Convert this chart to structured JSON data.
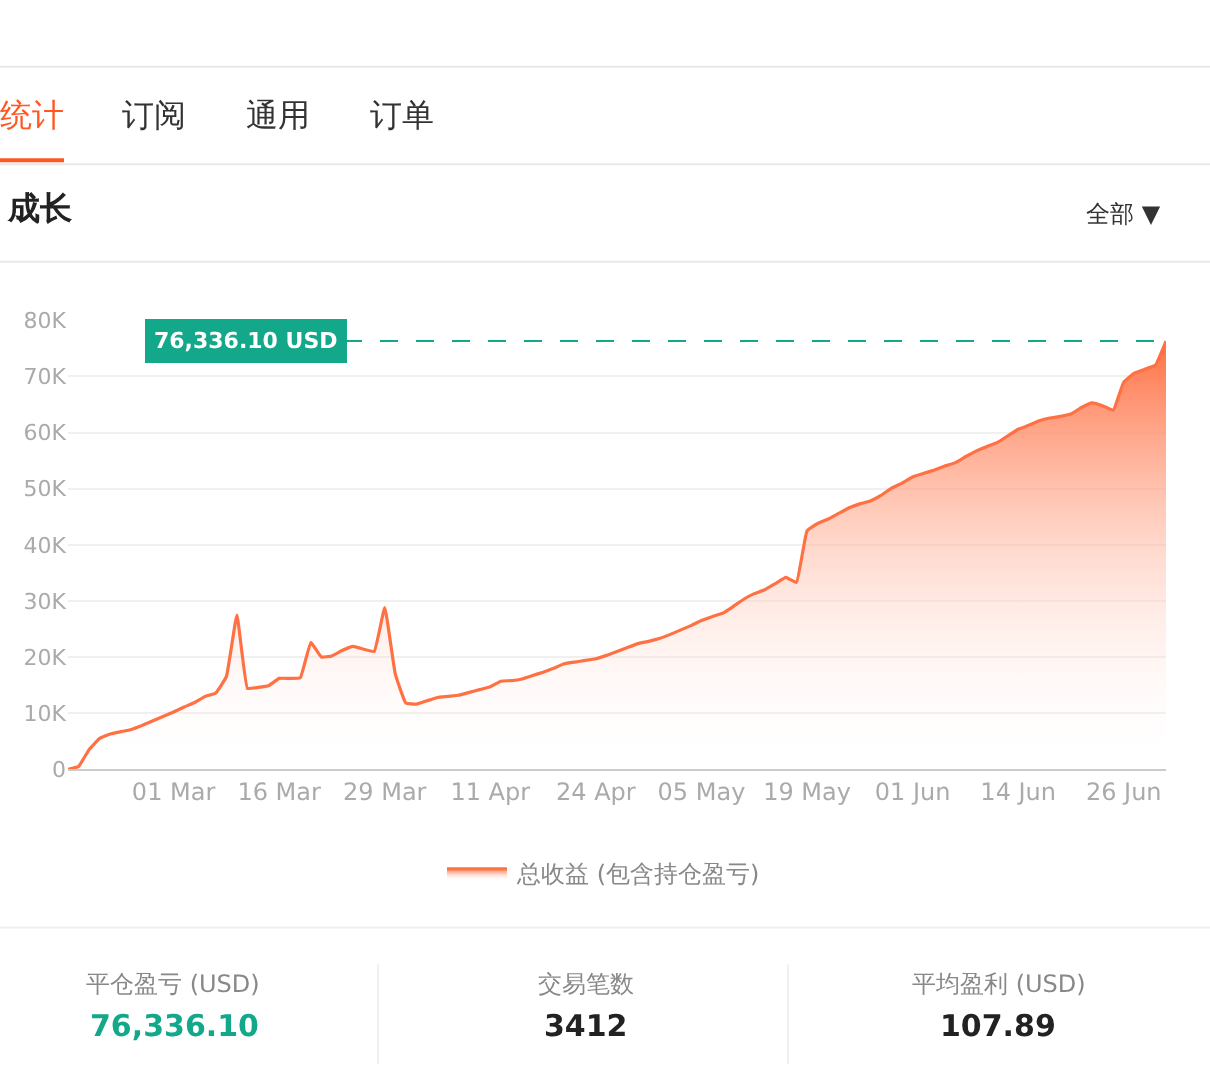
{
  "chart_data": {
    "type": "area",
    "title": "成长",
    "categories": [
      null,
      null,
      null,
      null,
      null,
      null,
      null,
      null,
      null,
      null,
      "01 Mar",
      null,
      null,
      null,
      null,
      null,
      null,
      null,
      null,
      null,
      "16 Mar",
      null,
      null,
      null,
      null,
      null,
      null,
      null,
      null,
      null,
      "29 Mar",
      null,
      null,
      null,
      null,
      null,
      null,
      null,
      null,
      null,
      "11 Apr",
      null,
      null,
      null,
      null,
      null,
      null,
      null,
      null,
      null,
      "24 Apr",
      null,
      null,
      null,
      null,
      null,
      null,
      null,
      null,
      null,
      "05 May",
      null,
      null,
      null,
      null,
      null,
      null,
      null,
      null,
      null,
      "19 May",
      null,
      null,
      null,
      null,
      null,
      null,
      null,
      null,
      null,
      "01 Jun",
      null,
      null,
      null,
      null,
      null,
      null,
      null,
      null,
      null,
      "14 Jun",
      null,
      null,
      null,
      null,
      null,
      null,
      null,
      null,
      null,
      "26 Jun",
      null,
      null,
      null,
      null
    ],
    "series": [
      {
        "name": "总收益 (包含持仓盈亏)",
        "color": "#ff7043",
        "values": [
          0,
          500,
          3500,
          5500,
          6300,
          6700,
          7100,
          7800,
          8600,
          9400,
          10200,
          11100,
          11900,
          13000,
          13600,
          16500,
          27500,
          14400,
          14600,
          14900,
          16200,
          16200,
          16300,
          22600,
          20000,
          20200,
          21200,
          21900,
          21400,
          21000,
          28800,
          17000,
          11800,
          11600,
          12200,
          12800,
          13000,
          13200,
          13700,
          14200,
          14700,
          15700,
          15800,
          16100,
          16700,
          17300,
          18000,
          18800,
          19100,
          19400,
          19700,
          20300,
          21000,
          21700,
          22400,
          22800,
          23300,
          24000,
          24800,
          25600,
          26500,
          27200,
          27800,
          29000,
          30300,
          31300,
          32000,
          33100,
          34200,
          33300,
          42500,
          43800,
          44600,
          45600,
          46600,
          47300,
          47800,
          48800,
          50100,
          51000,
          52100,
          52700,
          53300,
          54000,
          54600,
          55700,
          56700,
          57500,
          58200,
          59400,
          60600,
          61300,
          62100,
          62600,
          62900,
          63300,
          64500,
          65300,
          64800,
          64000,
          69000,
          70600,
          71300,
          72000,
          76300
        ]
      }
    ],
    "ylim": [
      0,
      80000
    ],
    "yticks": [
      0,
      {
        "value": 10000,
        "label": "10K"
      },
      {
        "value": 20000,
        "label": "20K"
      },
      {
        "value": 30000,
        "label": "30K"
      },
      {
        "value": 40000,
        "label": "40K"
      },
      {
        "value": 50000,
        "label": "50K"
      },
      {
        "value": 60000,
        "label": "60K"
      },
      {
        "value": 70000,
        "label": "70K"
      },
      {
        "value": 80000,
        "label": "80K"
      }
    ],
    "grid": "y",
    "legend": "bottom",
    "marker": "none",
    "line_style": "solid",
    "ref_lines": [
      {
        "axis": "y",
        "value": 76336.1,
        "label": "76,336.10 USD",
        "color": "#13a88a",
        "line_style": "dashed"
      }
    ],
    "annotations": [
      "统计",
      "订阅",
      "通用",
      "订单",
      "全部 ▼",
      "平仓盈亏 (USD)",
      "76,336.10",
      "交易笔数",
      "3412",
      "平均盈利 (USD)",
      "107.89"
    ]
  }
}
